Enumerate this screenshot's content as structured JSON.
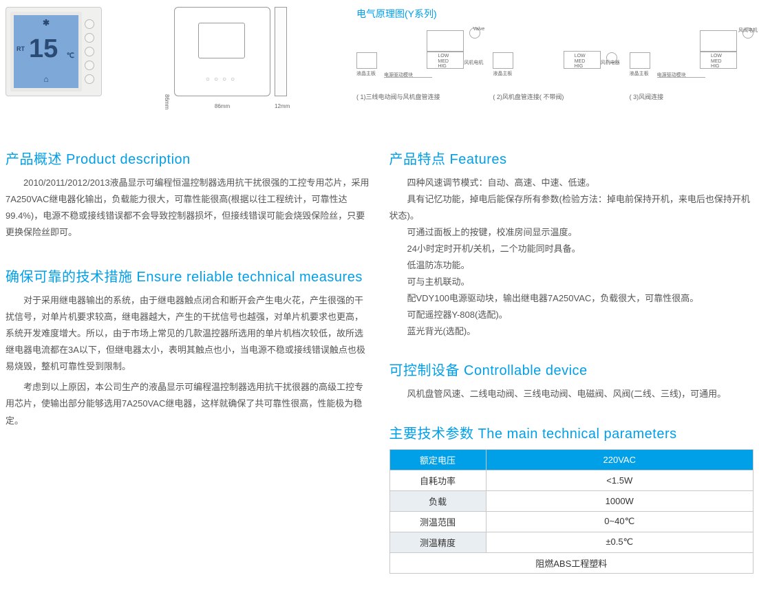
{
  "thermo": {
    "rt_label": "RT",
    "temp_value": "15",
    "temp_unit": "℃",
    "icon_top": "✱",
    "icon_bot": "⌂"
  },
  "dimensions": {
    "height_label": "86mm",
    "width_label": "86mm",
    "depth_label": "12mm"
  },
  "wiring": {
    "title": "电气原理图(Y系列)",
    "valve_label": "Valve",
    "motor_label1": "风机电机",
    "motor_label2": "风机电器",
    "motor_label3": "风阀电机",
    "lcd_label": "液晶主板",
    "psu_label": "电源驱动模块",
    "lowmedhi": "LOW\nMED\nHIG",
    "captions": [
      "( 1)三线电动阀与风机盘管连接",
      "( 2)风机盘管连接( 不带阀)",
      "( 3)风阀连接"
    ]
  },
  "sections": {
    "desc_h": "产品概述 Product description",
    "desc_p1": "2010/2011/2012/2013液晶显示可编程恒温控制器选用抗干扰很强的工控专用芯片，采用7A250VAC继电器化输出，负载能力很大，可靠性能很高(根据以往工程统计，可靠性达99.4%)，电源不稳或接线错误都不会导致控制器损坏，但接线错误可能会烧毁保险丝，只要更换保险丝即可。",
    "reliable_h": "确保可靠的技术措施 Ensure reliable technical measures",
    "reliable_p1": "对于采用继电器输出的系统，由于继电器触点闭合和断开会产生电火花，产生很强的干扰信号，对单片机要求较高，继电器越大，产生的干扰信号也越强，对单片机要求也更高，系统开发难度增大。所以，由于市场上常见的几款温控器所选用的单片机档次较低，故所选继电器电流都在3A以下，但继电器太小，表明其触点也小，当电源不稳或接线错误触点也极易烧毁，整机可靠性受到限制。",
    "reliable_p2": "考虑到以上原因，本公司生产的液晶显示可编程温控制器选用抗干扰很器的高级工控专用芯片，使输出部分能够选用7A250VAC继电器，这样就确保了共可靠性很高，性能极为稳定。",
    "features_h": "产品特点 Features",
    "features": [
      "四种风速调节模式：自动、高速、中速、低速。",
      "具有记忆功能，掉电后能保存所有参数(检验方法：掉电前保持开机，来电后也保持开机状态)。",
      "可通过面板上的按键，校准房间显示温度。",
      "24小时定时开机/关机，二个功能同时具备。",
      "低温防冻功能。",
      "可与主机联动。",
      "配VDY100电源驱动块，输出继电器7A250VAC，负载很大，可靠性很高。",
      "可配遥控器Y-808(选配)。",
      "蓝光背光(选配)。"
    ],
    "device_h": "可控制设备 Controllable device",
    "device_p": "风机盘管风速、二线电动阀、三线电动阀、电磁阀、风阀(二线、三线)，可通用。",
    "params_h": "主要技术参数 The main technical parameters",
    "table": {
      "header": [
        "额定电压",
        "220VAC"
      ],
      "rows": [
        [
          "自耗功率",
          "<1.5W"
        ],
        [
          "负载",
          "1000W"
        ],
        [
          "测温范围",
          "0~40℃"
        ],
        [
          "测温精度",
          "±0.5℃"
        ]
      ],
      "merged": "阻燃ABS工程塑料"
    }
  },
  "colors": {
    "accent": "#009fe8",
    "table_header_bg": "#00a0e9",
    "lcd_bg": "#7ea8d8",
    "text": "#555555",
    "border": "#c8c8c8"
  }
}
